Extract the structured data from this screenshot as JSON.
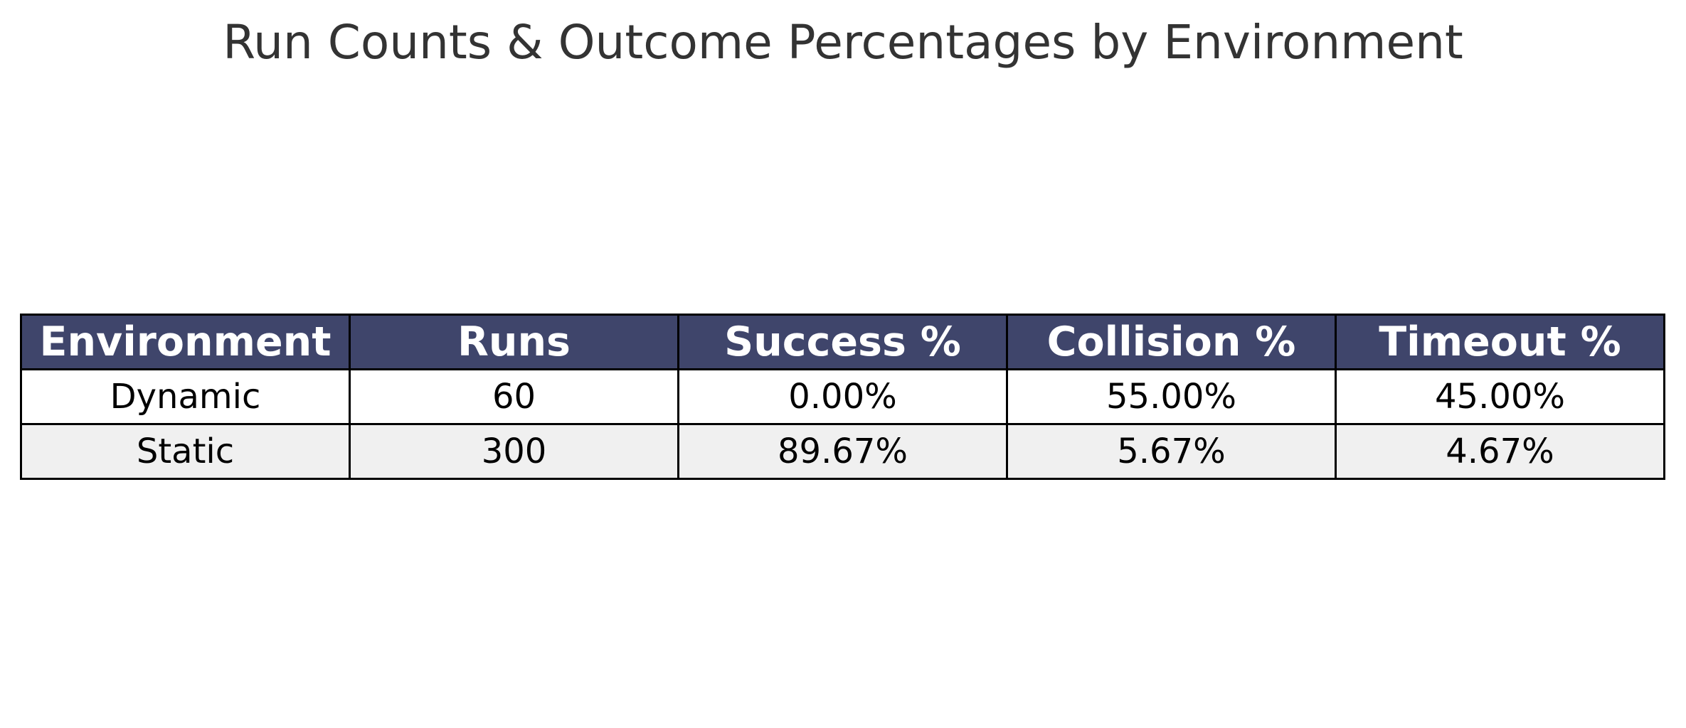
{
  "chart_data": {
    "type": "table",
    "title": "Run Counts & Outcome Percentages by Environment",
    "columns": [
      "Environment",
      "Runs",
      "Success %",
      "Collision %",
      "Timeout %"
    ],
    "rows": [
      [
        "Dynamic",
        "60",
        "0.00%",
        "55.00%",
        "45.00%"
      ],
      [
        "Static",
        "300",
        "89.67%",
        "5.67%",
        "4.67%"
      ]
    ]
  },
  "colors": {
    "header_bg": "#3f456b",
    "header_text": "#ffffff",
    "row_odd_bg": "#ffffff",
    "row_even_bg": "#f0f0f0",
    "border": "#000000",
    "title_text": "#333333"
  }
}
